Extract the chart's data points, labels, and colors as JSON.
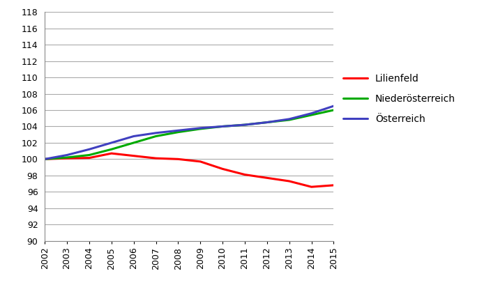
{
  "years": [
    2002,
    2003,
    2004,
    2005,
    2006,
    2007,
    2008,
    2009,
    2010,
    2011,
    2012,
    2013,
    2014,
    2015
  ],
  "lilienfeld": [
    100.0,
    100.1,
    100.15,
    100.7,
    100.4,
    100.1,
    100.0,
    99.7,
    98.8,
    98.1,
    97.7,
    97.3,
    96.6,
    96.8
  ],
  "niederoesterreich": [
    100.0,
    100.2,
    100.5,
    101.2,
    102.0,
    102.8,
    103.3,
    103.7,
    104.0,
    104.2,
    104.5,
    104.8,
    105.4,
    106.0
  ],
  "oesterreich": [
    100.0,
    100.5,
    101.2,
    102.0,
    102.8,
    103.2,
    103.5,
    103.8,
    104.0,
    104.2,
    104.5,
    104.9,
    105.6,
    106.5
  ],
  "color_lilienfeld": "#FF0000",
  "color_niederoesterreich": "#00AA00",
  "color_oesterreich": "#4040C0",
  "ylim": [
    90,
    118
  ],
  "yticks": [
    90,
    92,
    94,
    96,
    98,
    100,
    102,
    104,
    106,
    108,
    110,
    112,
    114,
    116,
    118
  ],
  "legend_labels": [
    "Lilienfeld",
    "Niederösterreich",
    "Österreich"
  ],
  "background_color": "#FFFFFF",
  "grid_color": "#AAAAAA",
  "linewidth": 2.2,
  "tick_fontsize": 9,
  "legend_fontsize": 10
}
